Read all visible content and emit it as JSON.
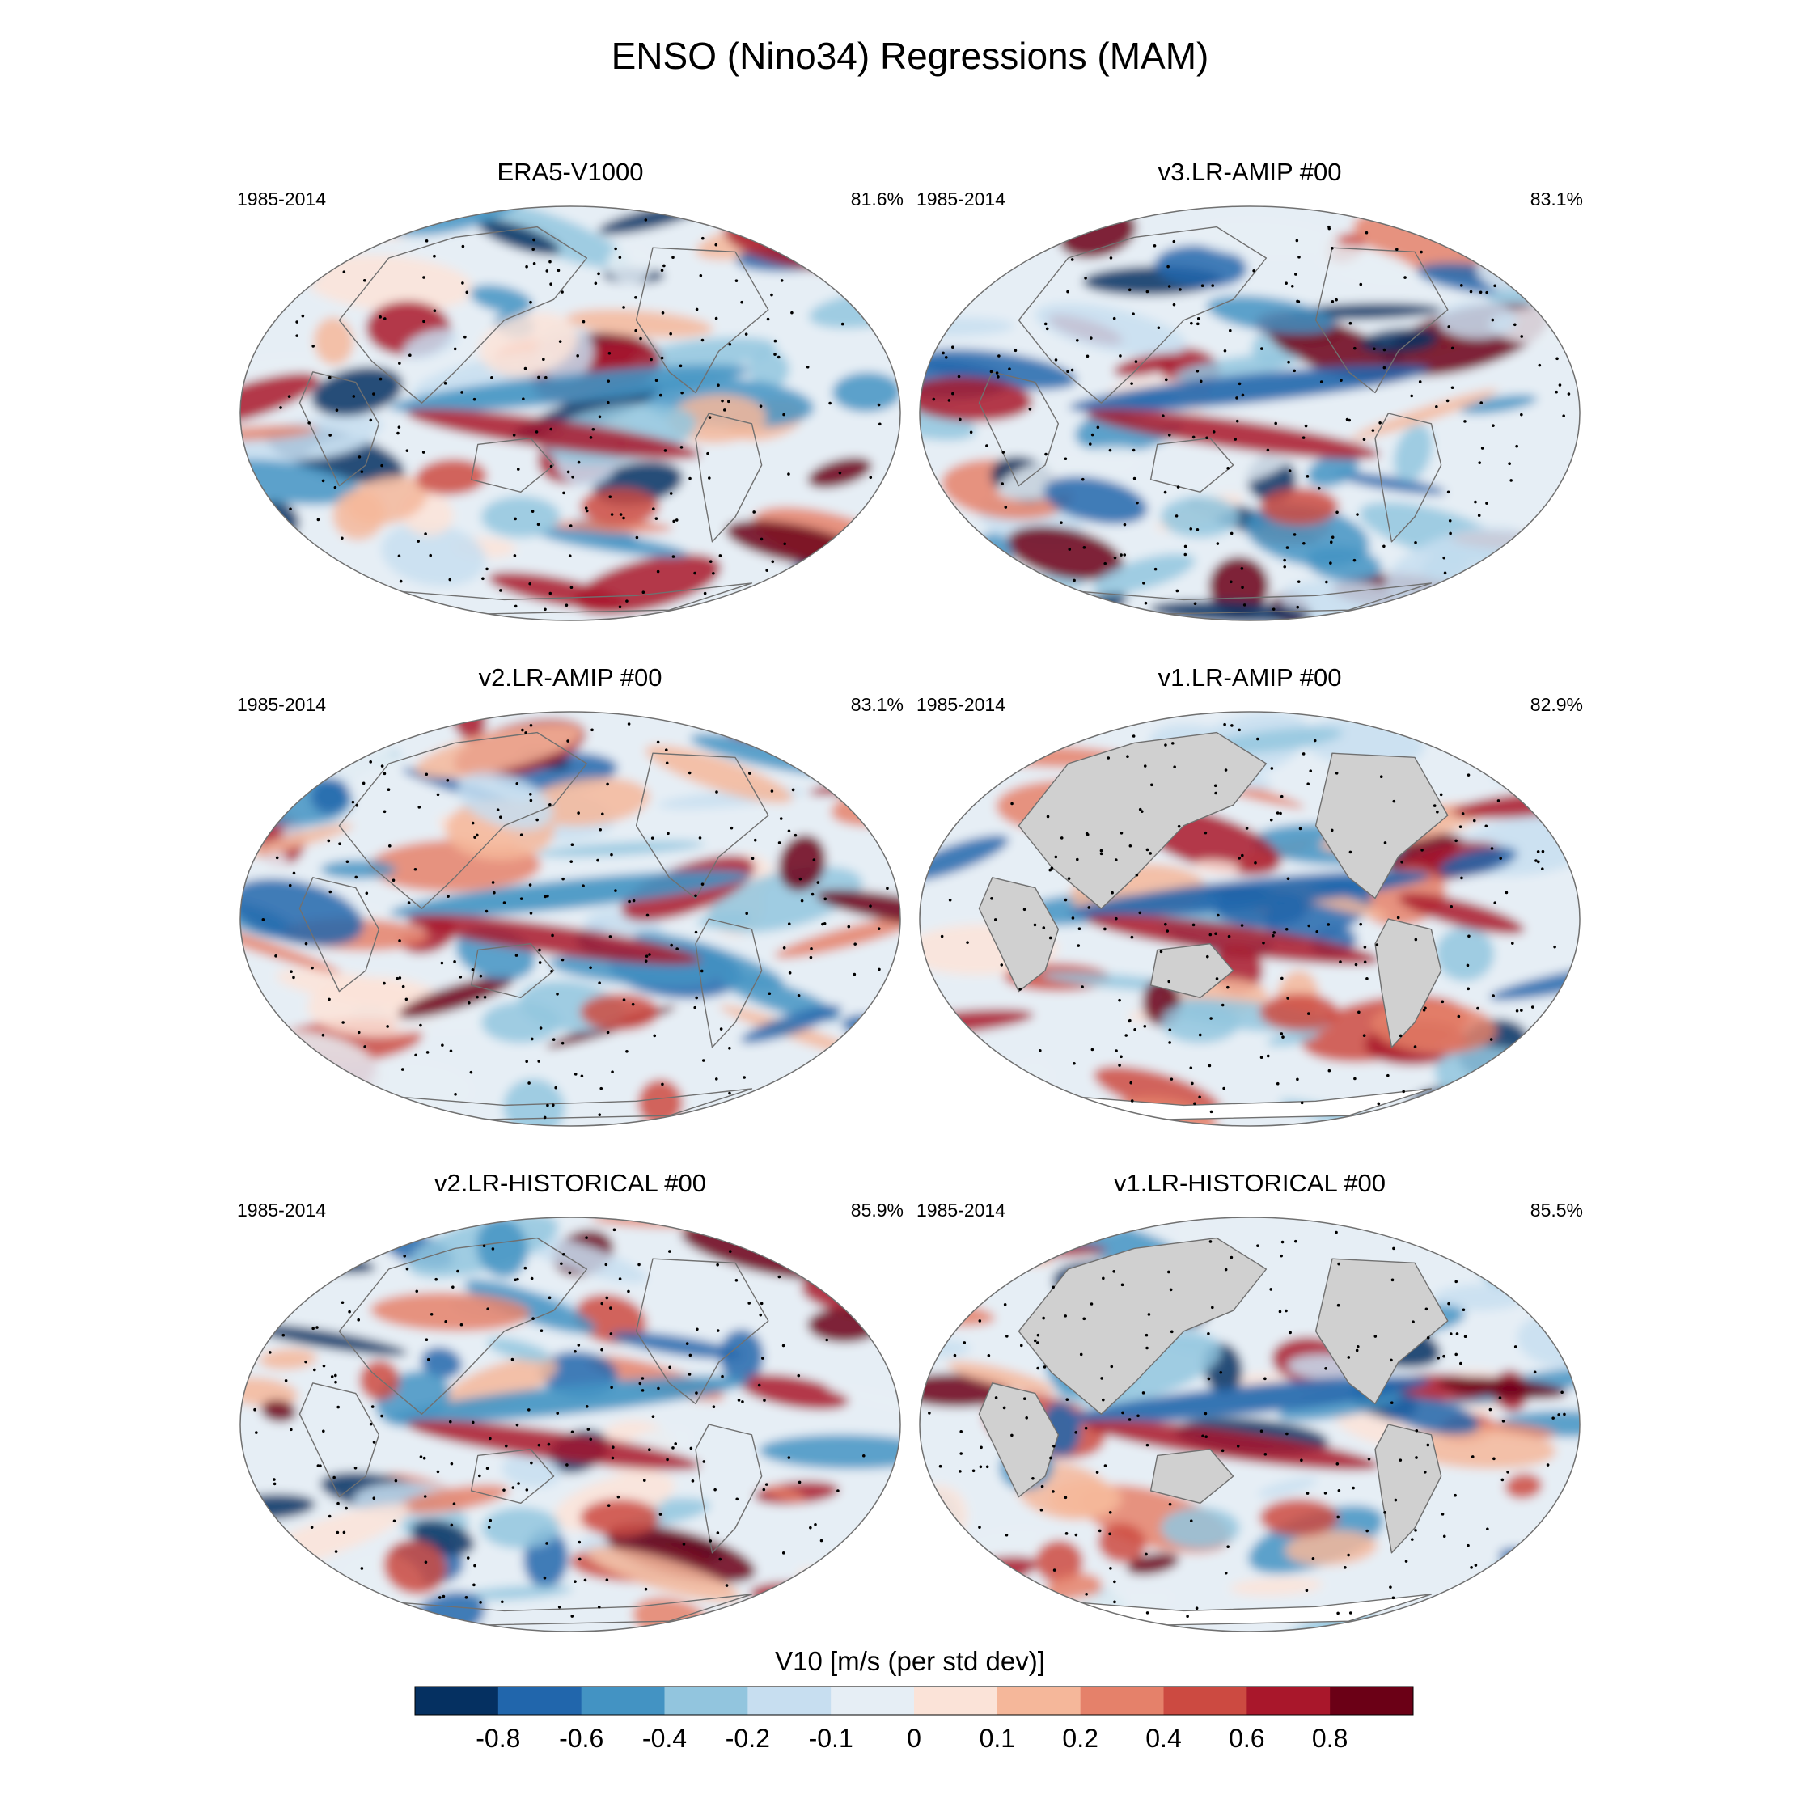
{
  "title": "ENSO (Nino34) Regressions (MAM)",
  "panels": [
    {
      "title": "ERA5-V1000",
      "period": "1985-2014",
      "pattern_correlation": "81.6%",
      "land_masked": false
    },
    {
      "title": "v3.LR-AMIP  #00",
      "period": "1985-2014",
      "pattern_correlation": "83.1%",
      "land_masked": false
    },
    {
      "title": "v2.LR-AMIP  #00",
      "period": "1985-2014",
      "pattern_correlation": "83.1%",
      "land_masked": false
    },
    {
      "title": "v1.LR-AMIP  #00",
      "period": "1985-2014",
      "pattern_correlation": "82.9%",
      "land_masked": true
    },
    {
      "title": "v2.LR-HISTORICAL  #00",
      "period": "1985-2014",
      "pattern_correlation": "85.9%",
      "land_masked": false
    },
    {
      "title": "v1.LR-HISTORICAL  #00",
      "period": "1985-2014",
      "pattern_correlation": "85.5%",
      "land_masked": true
    }
  ],
  "colorbar": {
    "label": "V10 [m/s (per std dev)]",
    "tick_labels": [
      "-0.8",
      "-0.6",
      "-0.4",
      "-0.2",
      "-0.1",
      "0",
      "0.1",
      "0.2",
      "0.4",
      "0.6",
      "0.8"
    ],
    "colors": [
      "#053061",
      "#2166ac",
      "#4393c3",
      "#92c5de",
      "#c7def0",
      "#e6eef5",
      "#fbe3d8",
      "#f5b79a",
      "#e5816a",
      "#cc4a41",
      "#a9172b",
      "#6b0016"
    ]
  },
  "colors": {
    "land_mask": "#d0d0d0",
    "missing": "#ffffff",
    "coastline": "#707070"
  }
}
